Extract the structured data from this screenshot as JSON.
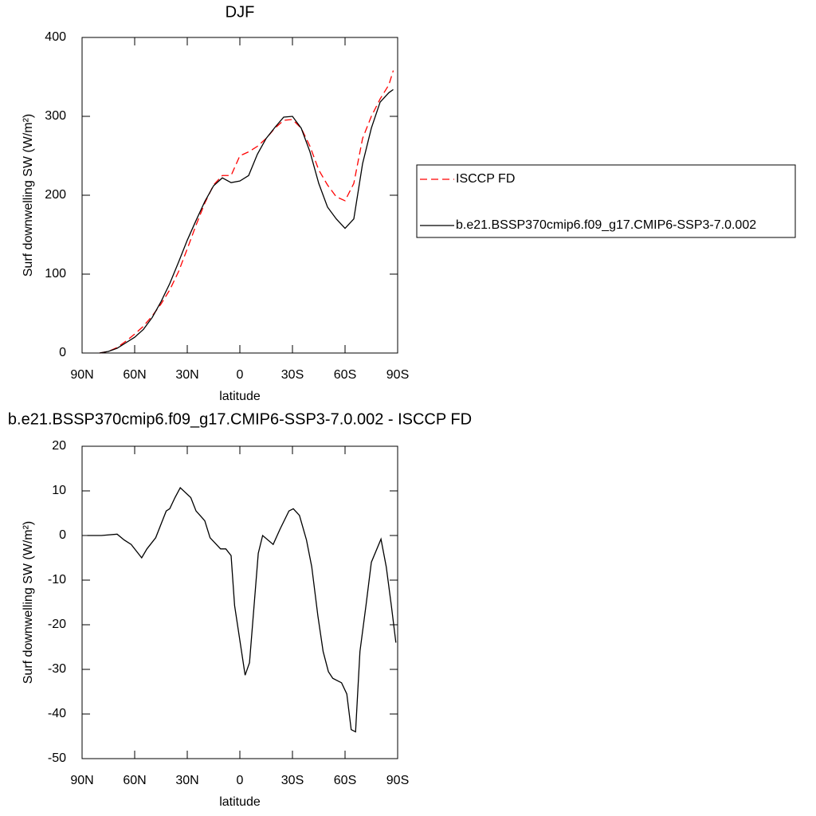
{
  "chart_data": [
    {
      "type": "line",
      "title": "DJF",
      "x_label": "latitude",
      "y_label": "Surf downwelling SW (W/m²)",
      "x": [
        80,
        75,
        70,
        65,
        60,
        55,
        50,
        45,
        40,
        35,
        30,
        25,
        20,
        15,
        10,
        5,
        0,
        -5,
        -10,
        -15,
        -20,
        -25,
        -30,
        -35,
        -40,
        -45,
        -50,
        -55,
        -60,
        -65,
        -70,
        -75,
        -80,
        -85,
        -87.5
      ],
      "series": [
        {
          "name": "ISCCP FD",
          "color": "#ff0000",
          "dash": true,
          "values": [
            0,
            2,
            7,
            15,
            24,
            34,
            47,
            62,
            80,
            103,
            132,
            162,
            190,
            213,
            225,
            225,
            250,
            255,
            262,
            272,
            285,
            295,
            296,
            285,
            262,
            232,
            213,
            198,
            193,
            215,
            272,
            300,
            322,
            340,
            358
          ]
        },
        {
          "name": "b.e21.BSSP370cmip6.f09_g17.CMIP6-SSP3-7.0.002",
          "color": "#000000",
          "dash": false,
          "values": [
            0,
            2,
            6,
            13,
            20,
            30,
            45,
            65,
            88,
            115,
            143,
            168,
            192,
            212,
            222,
            216,
            218,
            225,
            252,
            272,
            286,
            299,
            300,
            285,
            255,
            215,
            185,
            170,
            158,
            170,
            240,
            285,
            318,
            330,
            334
          ]
        }
      ],
      "xlim": [
        90,
        -90
      ],
      "xticks": [
        {
          "value": 90,
          "label": "90N"
        },
        {
          "value": 60,
          "label": "60N"
        },
        {
          "value": 30,
          "label": "30N"
        },
        {
          "value": 0,
          "label": "0"
        },
        {
          "value": -30,
          "label": "30S"
        },
        {
          "value": -60,
          "label": "60S"
        },
        {
          "value": -90,
          "label": "90S"
        }
      ],
      "ylim": [
        0,
        400
      ],
      "yticks": [
        0,
        100,
        200,
        300,
        400
      ],
      "legend": "right"
    },
    {
      "type": "line",
      "title": "b.e21.BSSP370cmip6.f09_g17.CMIP6-SSP3-7.0.002 - ISCCP FD",
      "x_label": "latitude",
      "y_label": "Surf downwelling SW (W/m²)",
      "x": [
        87,
        79,
        70,
        66,
        62,
        56,
        53,
        48,
        44,
        42,
        40,
        37,
        34,
        28,
        25,
        20,
        17,
        11,
        8,
        5,
        3,
        -3,
        -5.5,
        -10.5,
        -13,
        -19,
        -23,
        -28,
        -30.5,
        -34,
        -38,
        -41,
        -44.5,
        -47.5,
        -50.5,
        -53,
        -58,
        -61,
        -63.5,
        -66,
        -68.5,
        -72,
        -75,
        -80.5,
        -83.5,
        -86.5,
        -89
      ],
      "values": [
        0,
        0,
        0.3,
        -1,
        -2,
        -5,
        -3,
        -0.5,
        3.5,
        5.5,
        6,
        8.5,
        10.7,
        8.5,
        5.5,
        3.3,
        -0.5,
        -3,
        -3,
        -4.5,
        -15.7,
        -31.3,
        -28.5,
        -4,
        0,
        -2,
        1.5,
        5.5,
        6,
        4.5,
        -1,
        -7,
        -18,
        -26,
        -30.5,
        -32,
        -33,
        -35.5,
        -43.5,
        -44,
        -26,
        -15.5,
        -6,
        -0.8,
        -7,
        -16,
        -24
      ],
      "color": "#000000",
      "xlim": [
        90,
        -90
      ],
      "xticks": [
        {
          "value": 90,
          "label": "90N"
        },
        {
          "value": 60,
          "label": "60N"
        },
        {
          "value": 30,
          "label": "30N"
        },
        {
          "value": 0,
          "label": "0"
        },
        {
          "value": -30,
          "label": "30S"
        },
        {
          "value": -60,
          "label": "60S"
        },
        {
          "value": -90,
          "label": "90S"
        }
      ],
      "ylim": [
        -50,
        20
      ],
      "yticks": [
        -50,
        -40,
        -30,
        -20,
        -10,
        0,
        10,
        20
      ]
    }
  ]
}
